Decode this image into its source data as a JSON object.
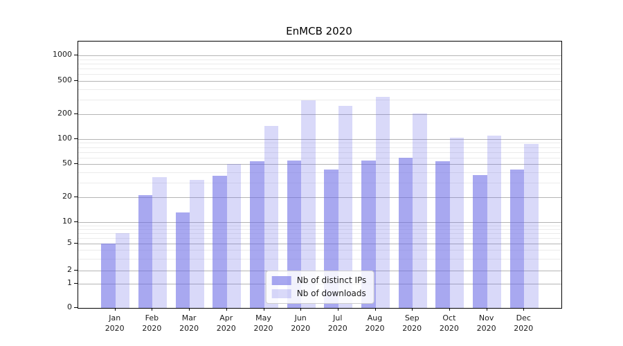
{
  "chart_data": {
    "type": "bar",
    "title": "EnMCB 2020",
    "categories": [
      "Jan 2020",
      "Feb 2020",
      "Mar 2020",
      "Apr 2020",
      "May 2020",
      "Jun 2020",
      "Jul 2020",
      "Aug 2020",
      "Sep 2020",
      "Oct 2020",
      "Nov 2020",
      "Dec 2020"
    ],
    "series": [
      {
        "name": "Nb of distinct IPs",
        "color": "rgba(105,105,230,0.58)",
        "values": [
          5,
          21,
          13,
          36,
          54,
          55,
          43,
          55,
          60,
          54,
          37,
          43
        ]
      },
      {
        "name": "Nb of downloads",
        "color": "rgba(105,105,230,0.25)",
        "values": [
          7,
          35,
          32,
          50,
          145,
          295,
          250,
          325,
          205,
          105,
          110,
          88
        ]
      }
    ],
    "yticks": [
      0,
      1,
      2,
      5,
      10,
      20,
      50,
      100,
      200,
      500,
      1000
    ],
    "ytick_labels": [
      "0",
      "1",
      "2",
      "5",
      "10",
      "20",
      "50",
      "100",
      "200",
      "500",
      "1000"
    ],
    "ylim": [
      0,
      1500
    ],
    "xlabel": "",
    "ylabel": "",
    "scale": "symlog",
    "grid": true,
    "legend_position": "lower center",
    "colors": {
      "bar_dark": "rgba(105,105,230,0.58)",
      "bar_light": "rgba(105,105,230,0.25)",
      "grid_major": "#b4b4b4",
      "grid_minor": "#ebebeb",
      "axis": "#000000",
      "text": "#191919"
    }
  }
}
